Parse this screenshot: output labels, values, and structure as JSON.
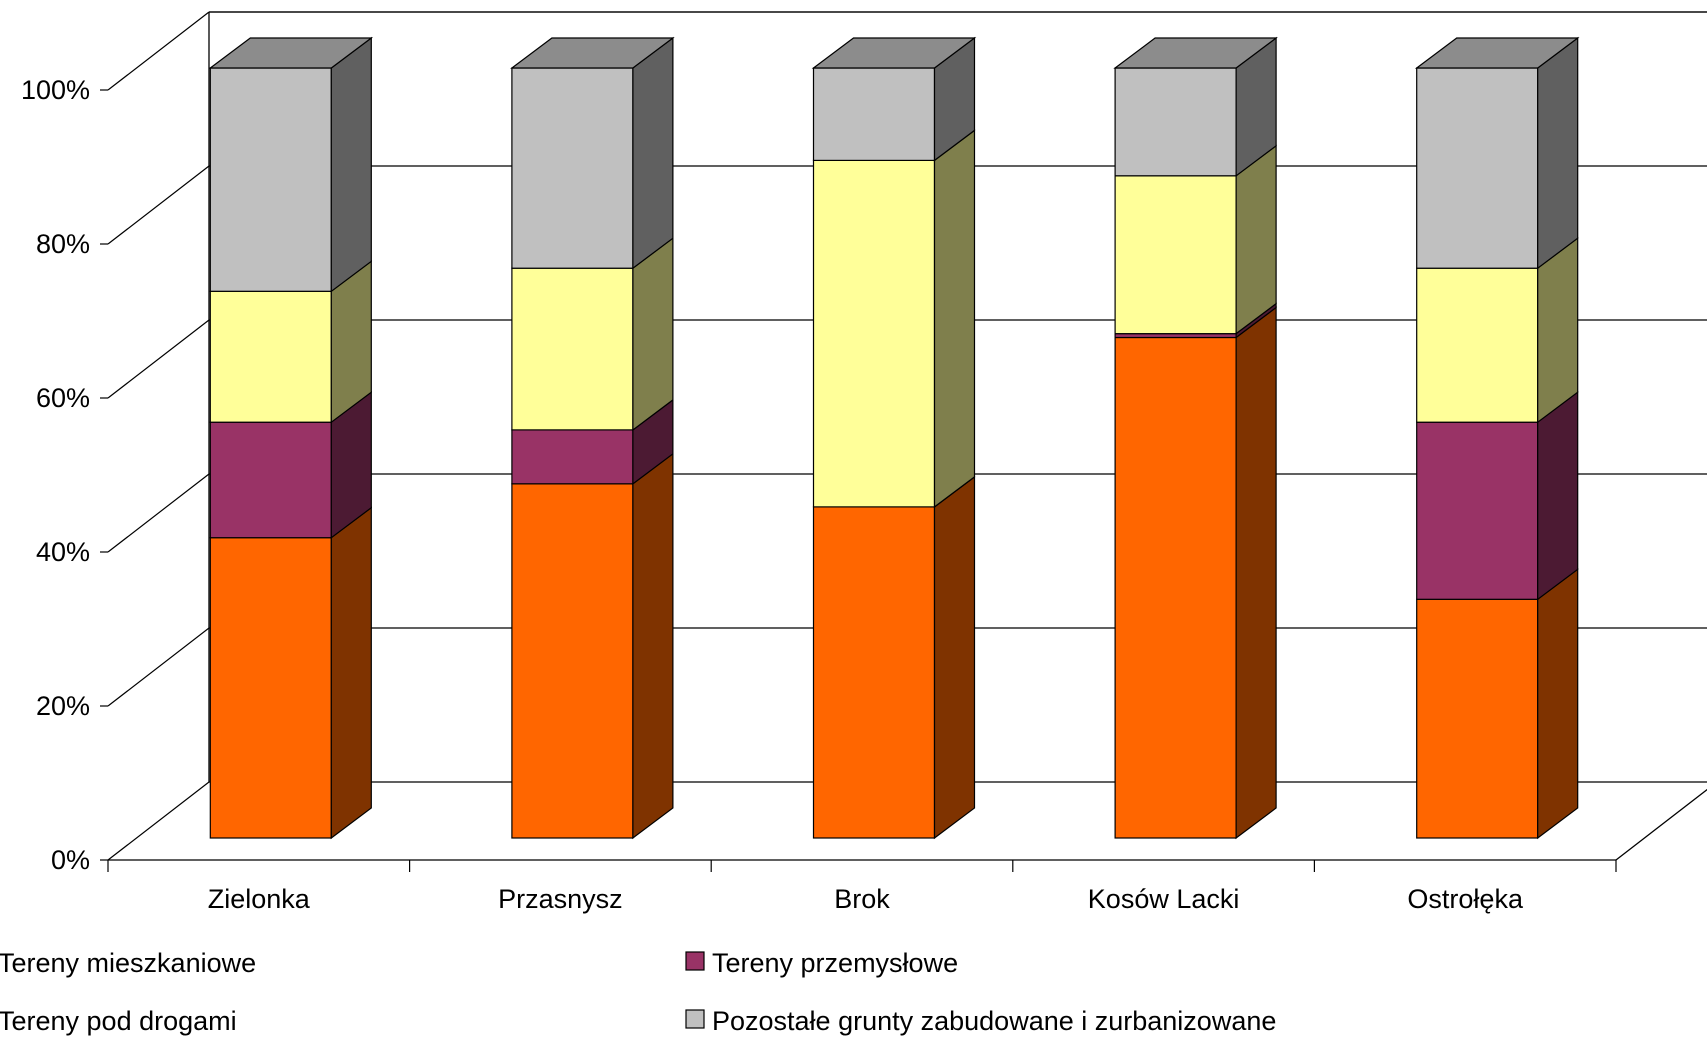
{
  "chart_data": {
    "type": "bar",
    "stacked": true,
    "stack_mode": "percent",
    "three_d": true,
    "categories": [
      "Zielonka",
      "Przasnysz",
      "Brok",
      "Kosów Lacki",
      "Ostrołęka"
    ],
    "series": [
      {
        "name": "Tereny mieszkaniowe",
        "values": [
          39,
          46,
          43,
          65,
          31
        ],
        "color": "#FF6600",
        "side_color": "#7F3300"
      },
      {
        "name": "Tereny przemysłowe",
        "values": [
          15,
          7,
          0,
          0.5,
          23
        ],
        "color": "#993366",
        "side_color": "#4C1A33"
      },
      {
        "name": "Tereny pod drogami",
        "values": [
          17,
          21,
          45,
          20.5,
          20
        ],
        "color": "#FFFF99",
        "side_color": "#7F7F4C"
      },
      {
        "name": "Pozostałe grunty zabudowane i zurbanizowane",
        "values": [
          29,
          26,
          12,
          14,
          26
        ],
        "color": "#C0C0C0",
        "side_color": "#606060"
      }
    ],
    "y_ticks": [
      "0%",
      "20%",
      "40%",
      "60%",
      "80%",
      "100%"
    ],
    "ylim": [
      0,
      100
    ],
    "grid": true,
    "legend_position": "bottom",
    "title": "",
    "xlabel": "",
    "ylabel": ""
  }
}
